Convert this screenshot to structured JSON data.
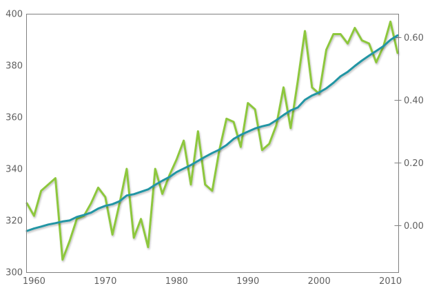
{
  "chart_data": {
    "type": "line",
    "x": [
      1959,
      1960,
      1961,
      1962,
      1963,
      1964,
      1965,
      1966,
      1967,
      1968,
      1969,
      1970,
      1971,
      1972,
      1973,
      1974,
      1975,
      1976,
      1977,
      1978,
      1979,
      1980,
      1981,
      1982,
      1983,
      1984,
      1985,
      1986,
      1987,
      1988,
      1989,
      1990,
      1991,
      1992,
      1993,
      1994,
      1995,
      1996,
      1997,
      1998,
      1999,
      2000,
      2001,
      2002,
      2003,
      2004,
      2005,
      2006,
      2007,
      2008,
      2009,
      2010,
      2011
    ],
    "series": [
      {
        "id": "green-jagged-line",
        "axis": "right",
        "color": "#8DC73C",
        "values": [
          0.07,
          0.03,
          0.11,
          0.13,
          0.15,
          -0.11,
          -0.05,
          0.02,
          0.03,
          0.07,
          0.12,
          0.09,
          -0.03,
          0.07,
          0.18,
          -0.04,
          0.02,
          -0.07,
          0.18,
          0.1,
          0.16,
          0.21,
          0.27,
          0.13,
          0.3,
          0.13,
          0.11,
          0.24,
          0.34,
          0.33,
          0.25,
          0.39,
          0.37,
          0.24,
          0.26,
          0.32,
          0.44,
          0.31,
          0.46,
          0.62,
          0.44,
          0.42,
          0.56,
          0.61,
          0.61,
          0.58,
          0.63,
          0.59,
          0.58,
          0.52,
          0.57,
          0.65,
          0.55
        ]
      },
      {
        "id": "teal-smooth-line",
        "axis": "left",
        "color": "#2395A4",
        "values": [
          315.97,
          316.91,
          317.64,
          318.45,
          318.99,
          319.62,
          320.04,
          321.38,
          322.16,
          323.04,
          324.62,
          325.68,
          326.32,
          327.45,
          329.68,
          330.18,
          331.11,
          332.04,
          333.83,
          335.4,
          336.84,
          338.75,
          340.11,
          341.45,
          343.05,
          344.65,
          346.12,
          347.42,
          349.19,
          351.57,
          353.12,
          354.39,
          355.61,
          356.45,
          357.1,
          358.83,
          360.82,
          362.61,
          363.73,
          366.7,
          368.38,
          369.55,
          371.14,
          373.28,
          375.8,
          377.52,
          379.8,
          381.9,
          383.79,
          385.6,
          387.43,
          389.9,
          391.65
        ]
      }
    ],
    "axes": {
      "x": {
        "range": [
          1958.9,
          2011.1
        ],
        "ticks": [
          1960,
          1970,
          1980,
          1990,
          2000,
          2010
        ],
        "tick_labels": [
          "1960",
          "1970",
          "1980",
          "1990",
          "2000",
          "2010"
        ]
      },
      "left": {
        "range": [
          300,
          400
        ],
        "ticks": [
          300,
          320,
          340,
          360,
          380,
          400
        ],
        "tick_labels": [
          "300",
          "320",
          "340",
          "360",
          "380",
          "400"
        ]
      },
      "right": {
        "range": [
          -0.15,
          0.675
        ],
        "ticks": [
          0.0,
          0.2,
          0.4,
          0.6
        ],
        "tick_labels": [
          "0.00",
          "0.20",
          "0.40",
          "0.60"
        ]
      }
    },
    "grid": false,
    "legend": false,
    "colors": {
      "background": "#ffffff",
      "border": "#7f7f7f",
      "tick_text": "#606060"
    }
  }
}
